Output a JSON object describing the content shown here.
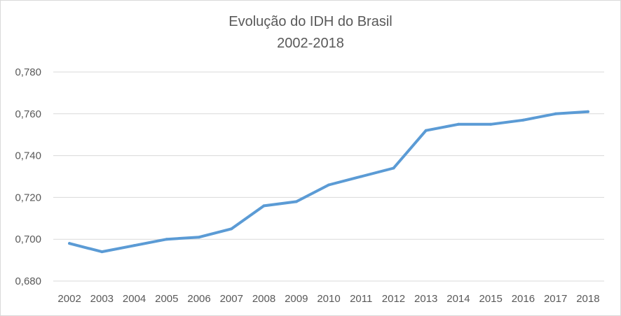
{
  "chart_data": {
    "type": "line",
    "title": "Evolução do IDH do Brasil",
    "subtitle": "2002-2018",
    "xlabel": "",
    "ylabel": "",
    "categories": [
      "2002",
      "2003",
      "2004",
      "2005",
      "2006",
      "2007",
      "2008",
      "2009",
      "2010",
      "2011",
      "2012",
      "2013",
      "2014",
      "2015",
      "2016",
      "2017",
      "2018"
    ],
    "series": [
      {
        "values": [
          0.698,
          0.694,
          0.697,
          0.7,
          0.701,
          0.705,
          0.716,
          0.718,
          0.726,
          0.73,
          0.734,
          0.752,
          0.755,
          0.755,
          0.757,
          0.76,
          0.761
        ],
        "color": "#5b9bd5"
      }
    ],
    "ylim": [
      0.68,
      0.78
    ],
    "yticks": [
      "0,680",
      "0,700",
      "0,720",
      "0,740",
      "0,760",
      "0,780"
    ],
    "grid": true,
    "legend": "none"
  }
}
